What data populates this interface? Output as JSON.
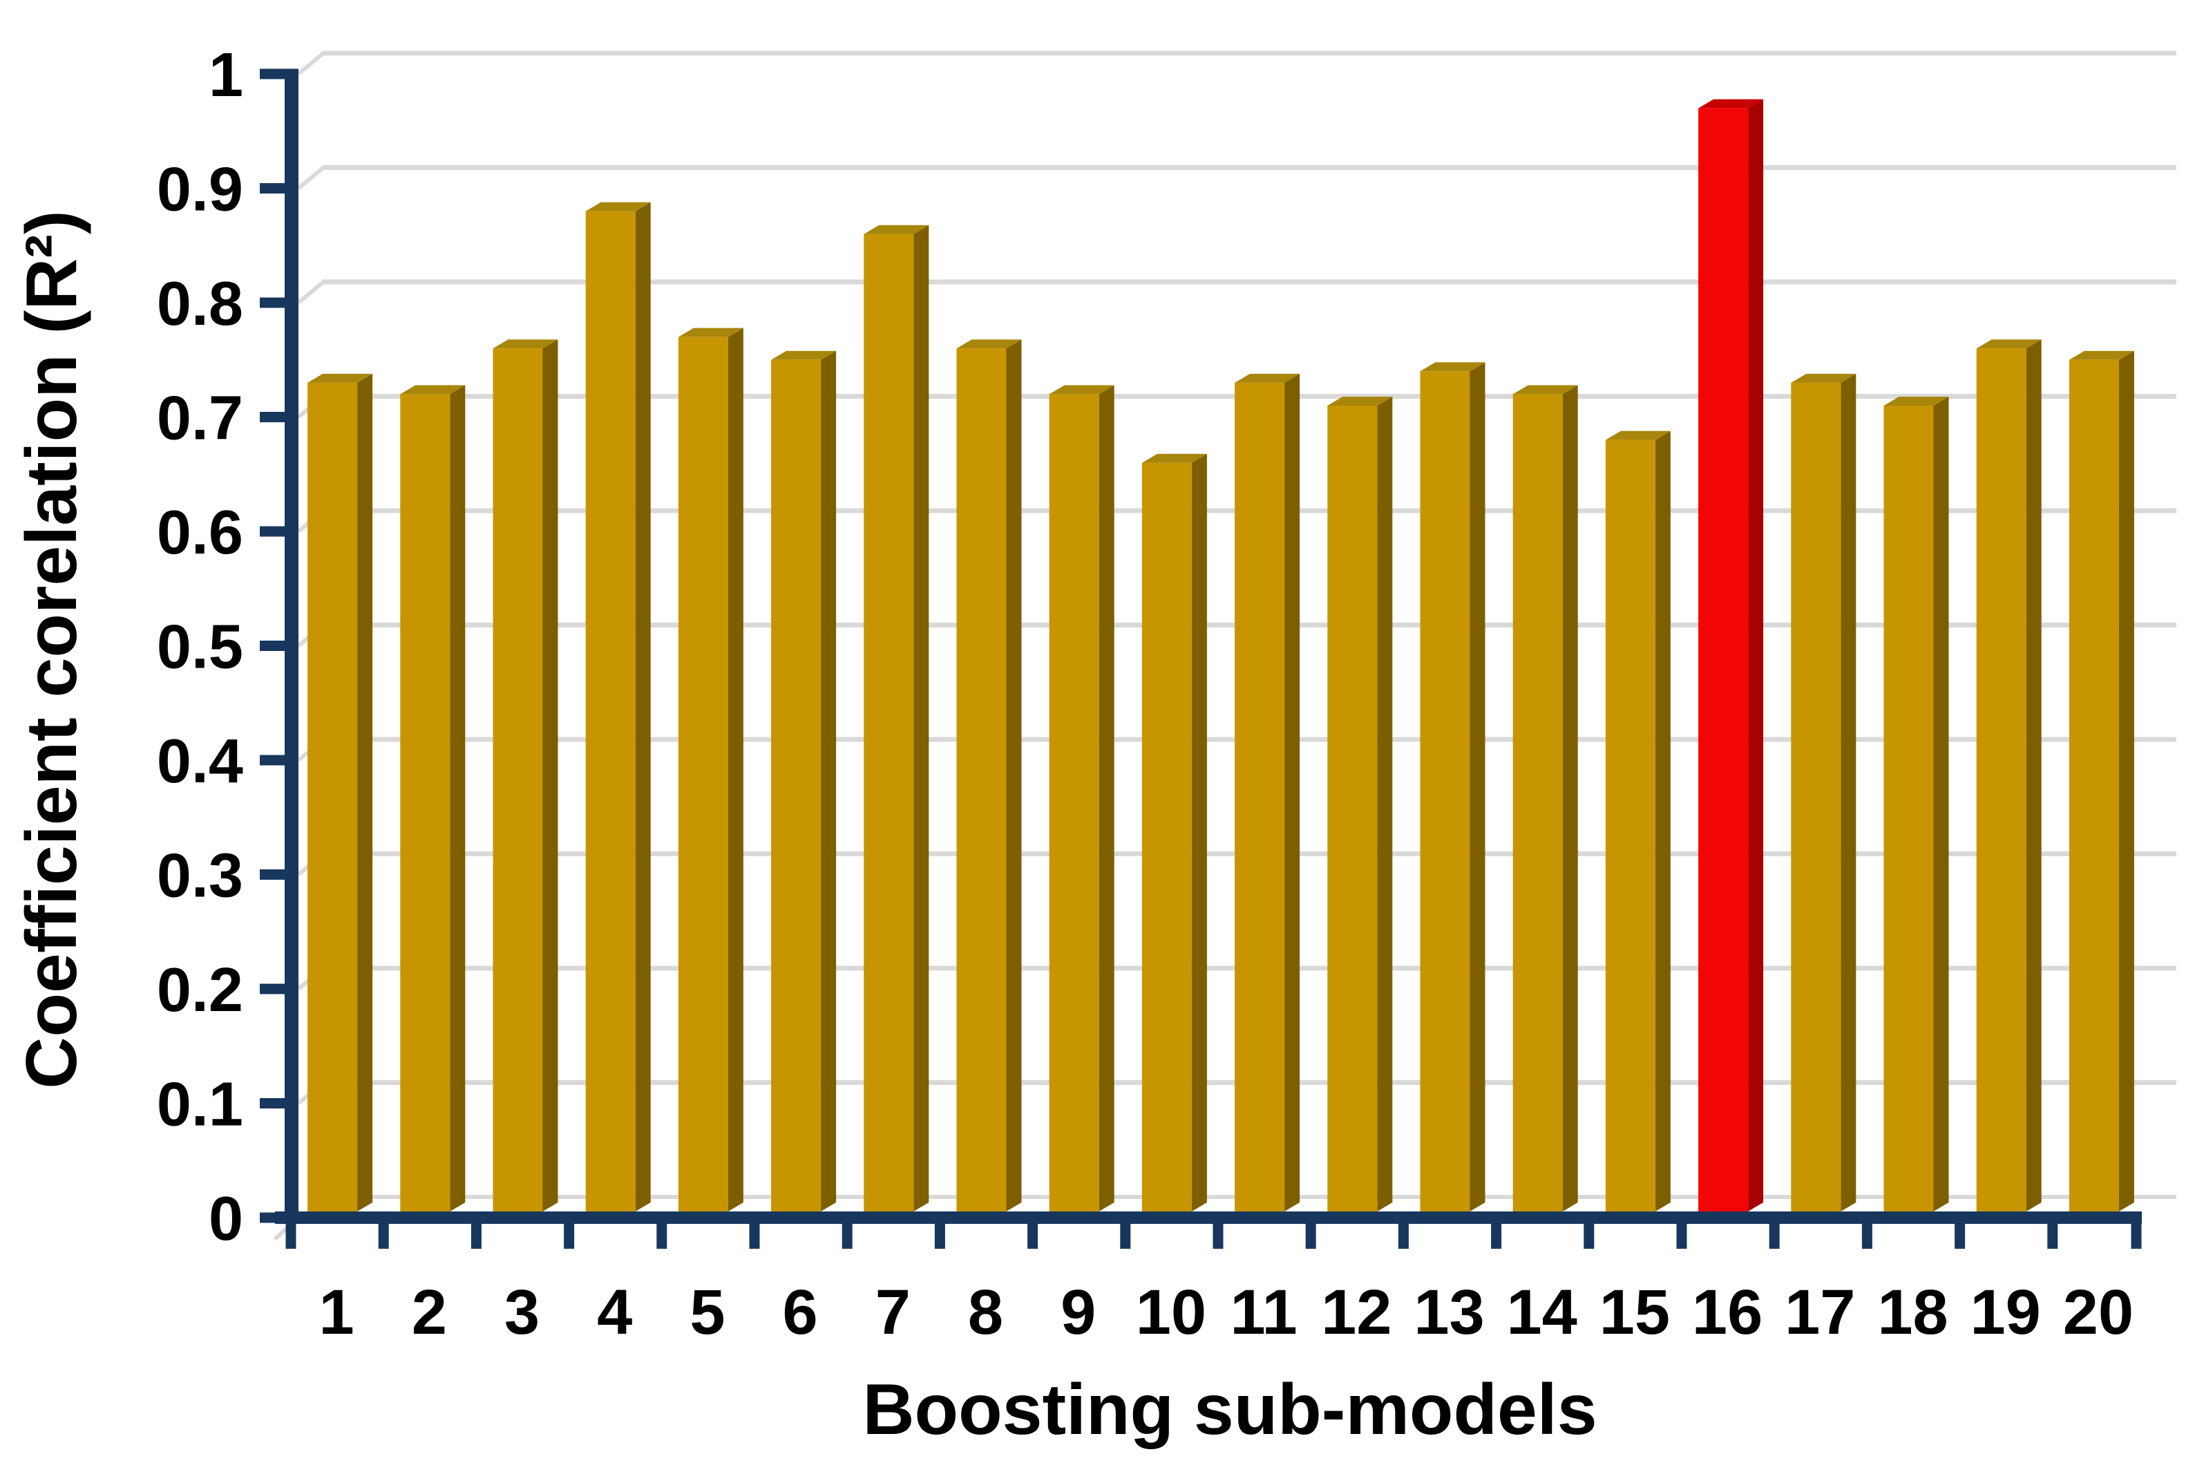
{
  "chart_data": {
    "type": "bar",
    "title": "",
    "xlabel": "Boosting sub-models",
    "ylabel": "Coefficient corelation (R²)",
    "categories": [
      "1",
      "2",
      "3",
      "4",
      "5",
      "6",
      "7",
      "8",
      "9",
      "10",
      "11",
      "12",
      "13",
      "14",
      "15",
      "16",
      "17",
      "18",
      "19",
      "20"
    ],
    "values": [
      0.73,
      0.72,
      0.76,
      0.88,
      0.77,
      0.75,
      0.86,
      0.76,
      0.72,
      0.66,
      0.73,
      0.71,
      0.74,
      0.72,
      0.68,
      0.97,
      0.73,
      0.71,
      0.76,
      0.75
    ],
    "highlight_index": 15,
    "highlighted_category": "16",
    "ylim": [
      0,
      1
    ],
    "ytick_labels": [
      "1",
      "0.9",
      "0.8",
      "0.7",
      "0.6",
      "0.5",
      "0.4",
      "0.3",
      "0.2",
      "0.1",
      "0"
    ],
    "grid": true,
    "legend_position": "none",
    "colors": {
      "bar_front": "#C79500",
      "bar_side": "#7D5F00",
      "bar_top": "#A8860B",
      "highlight_front": "#F40505",
      "highlight_side": "#A80000",
      "highlight_top": "#C80000",
      "axis": "#17375D",
      "gridline": "#D9D9D9",
      "text": "#000000",
      "background": "#FFFFFF"
    }
  }
}
